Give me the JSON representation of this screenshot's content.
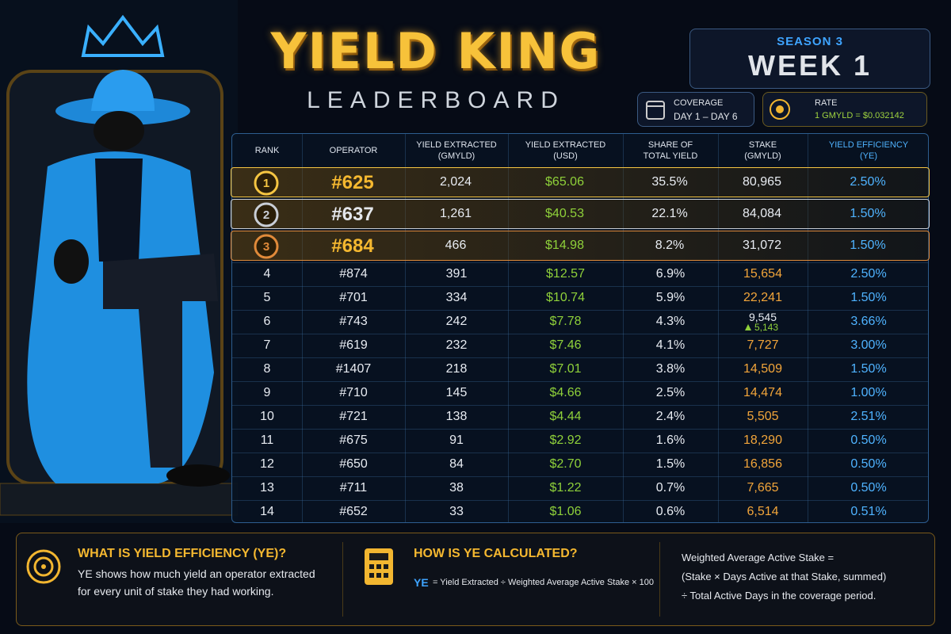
{
  "header": {
    "title": "YIELD KING",
    "subtitle": "LEADERBOARD",
    "season": "SEASON 3",
    "week": "WEEK 1",
    "coverage_label": "COVERAGE",
    "coverage_value": "DAY 1 – DAY 6",
    "rate_label": "RATE",
    "rate_value": "1 GMYLD = $0.032142"
  },
  "table": {
    "columns": [
      [
        "RANK"
      ],
      [
        "OPERATOR"
      ],
      [
        "YIELD EXTRACTED",
        "(GMYLD)"
      ],
      [
        "YIELD EXTRACTED",
        "(USD)"
      ],
      [
        "SHARE OF",
        "TOTAL YIELD"
      ],
      [
        "STAKE",
        "(GMYLD)"
      ],
      [
        "YIELD EFFICIENCY",
        "(YE)"
      ]
    ],
    "rows": [
      {
        "rank": "1",
        "operator": "#625",
        "gmyld": "2,024",
        "usd": "$65.06",
        "share": "35.5%",
        "stake": "80,965",
        "ye": "2.50%"
      },
      {
        "rank": "2",
        "operator": "#637",
        "gmyld": "1,261",
        "usd": "$40.53",
        "share": "22.1%",
        "stake": "84,084",
        "ye": "1.50%"
      },
      {
        "rank": "3",
        "operator": "#684",
        "gmyld": "466",
        "usd": "$14.98",
        "share": "8.2%",
        "stake": "31,072",
        "ye": "1.50%"
      },
      {
        "rank": "4",
        "operator": "#874",
        "gmyld": "391",
        "usd": "$12.57",
        "share": "6.9%",
        "stake": "15,654",
        "ye": "2.50%"
      },
      {
        "rank": "5",
        "operator": "#701",
        "gmyld": "334",
        "usd": "$10.74",
        "share": "5.9%",
        "stake": "22,241",
        "ye": "1.50%"
      },
      {
        "rank": "6",
        "operator": "#743",
        "gmyld": "242",
        "usd": "$7.78",
        "share": "4.3%",
        "stake": "9,545",
        "stake_change": "5,143",
        "ye": "3.66%"
      },
      {
        "rank": "7",
        "operator": "#619",
        "gmyld": "232",
        "usd": "$7.46",
        "share": "4.1%",
        "stake": "7,727",
        "ye": "3.00%"
      },
      {
        "rank": "8",
        "operator": "#1407",
        "gmyld": "218",
        "usd": "$7.01",
        "share": "3.8%",
        "stake": "14,509",
        "ye": "1.50%"
      },
      {
        "rank": "9",
        "operator": "#710",
        "gmyld": "145",
        "usd": "$4.66",
        "share": "2.5%",
        "stake": "14,474",
        "ye": "1.00%"
      },
      {
        "rank": "10",
        "operator": "#721",
        "gmyld": "138",
        "usd": "$4.44",
        "share": "2.4%",
        "stake": "5,505",
        "ye": "2.51%"
      },
      {
        "rank": "11",
        "operator": "#675",
        "gmyld": "91",
        "usd": "$2.92",
        "share": "1.6%",
        "stake": "18,290",
        "ye": "0.50%"
      },
      {
        "rank": "12",
        "operator": "#650",
        "gmyld": "84",
        "usd": "$2.70",
        "share": "1.5%",
        "stake": "16,856",
        "ye": "0.50%"
      },
      {
        "rank": "13",
        "operator": "#711",
        "gmyld": "38",
        "usd": "$1.22",
        "share": "0.7%",
        "stake": "7,665",
        "ye": "0.50%"
      },
      {
        "rank": "14",
        "operator": "#652",
        "gmyld": "33",
        "usd": "$1.06",
        "share": "0.6%",
        "stake": "6,514",
        "ye": "0.51%"
      }
    ]
  },
  "footer": {
    "what_title": "WHAT IS YIELD EFFICIENCY (YE)?",
    "what_body": [
      "YE shows how much yield an operator extracted",
      "for every unit of stake they had working."
    ],
    "how_title": "HOW IS YE CALCULATED?",
    "how_label": "YE",
    "how_formula": "= Yield Extracted ÷ Weighted Average Active Stake × 100",
    "weighted": [
      "Weighted Average Active Stake =",
      "(Stake × Days Active at that Stake, summed)",
      "÷ Total Active Days in the coverage period."
    ]
  }
}
